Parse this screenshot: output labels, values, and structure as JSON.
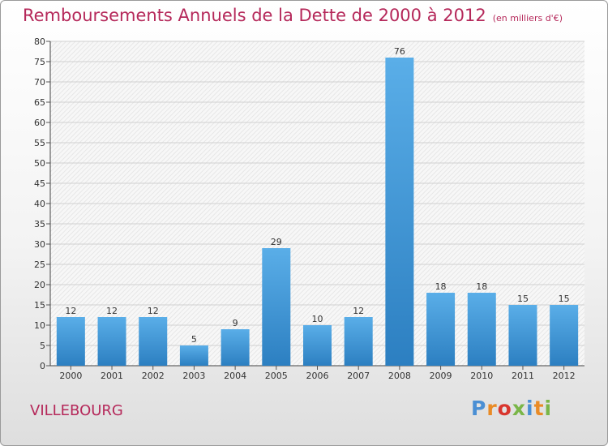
{
  "title": "Remboursements Annuels de la Dette de 2000 à 2012",
  "unit_note": "(en milliers d'€)",
  "commune": "VILLEBOURG",
  "logo": {
    "text": "Proxiti",
    "letter_colors": [
      "#4a8fd4",
      "#e98b26",
      "#d9362e",
      "#7ab648",
      "#4a8fd4",
      "#e98b26",
      "#7ab648"
    ]
  },
  "colors": {
    "title": "#b5285a",
    "bar_light": "#5aaee8",
    "bar_dark": "#2c7fc1"
  },
  "chart_data": {
    "type": "bar",
    "title": "Remboursements Annuels de la Dette de 2000 à 2012",
    "subtitle": "(en milliers d'€)",
    "xlabel": "",
    "ylabel": "",
    "categories": [
      "2000",
      "2001",
      "2002",
      "2003",
      "2004",
      "2005",
      "2006",
      "2007",
      "2008",
      "2009",
      "2010",
      "2011",
      "2012"
    ],
    "values": [
      12,
      12,
      12,
      5,
      9,
      29,
      10,
      12,
      76,
      18,
      18,
      15,
      15
    ],
    "data_labels": [
      "12",
      "12",
      "12",
      "5",
      "9",
      "29",
      "10",
      "12",
      "76",
      "18",
      "18",
      "15",
      "15"
    ],
    "ylim": [
      0,
      80
    ],
    "yticks": [
      0,
      5,
      10,
      15,
      20,
      25,
      30,
      35,
      40,
      45,
      50,
      55,
      60,
      65,
      70,
      75,
      80
    ],
    "grid": true
  }
}
